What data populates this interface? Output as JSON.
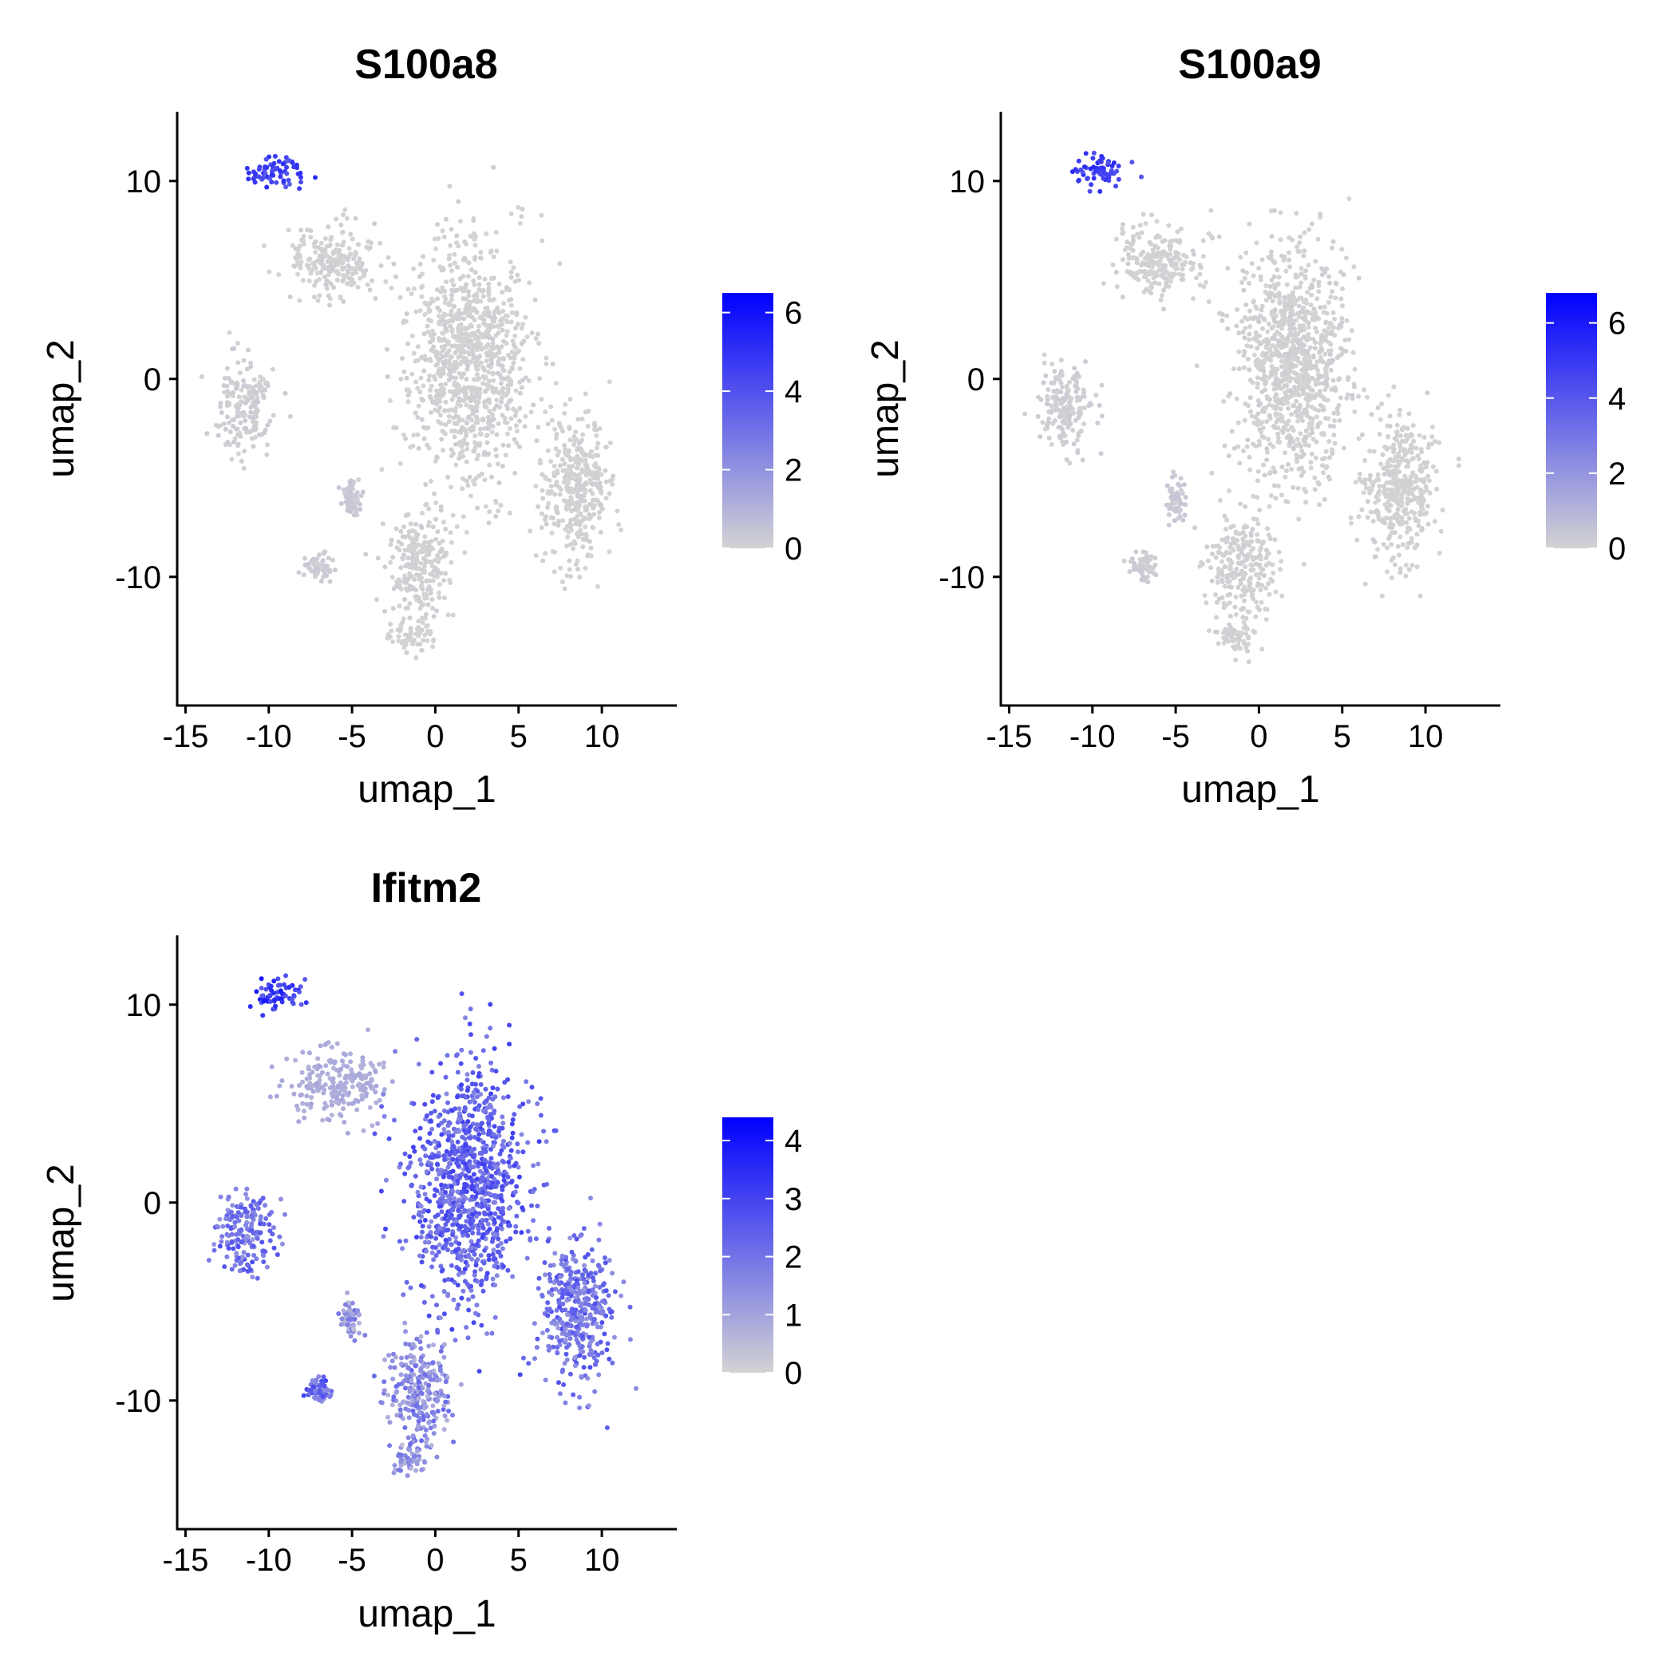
{
  "chart_data": [
    {
      "type": "scatter",
      "title": "S100a8",
      "xlabel": "umap_1",
      "ylabel": "umap_2",
      "xlim": [
        -15.5,
        14.5
      ],
      "ylim": [
        -16.5,
        13.5
      ],
      "xticks": [
        -15,
        -10,
        -5,
        0,
        5,
        10
      ],
      "xtick_labels": [
        "-15",
        "-10",
        "-5",
        "0",
        "5",
        "10"
      ],
      "yticks": [
        -10,
        0,
        10
      ],
      "ytick_labels": [
        "-10",
        "0",
        "10"
      ],
      "grid": false,
      "legend": {
        "position": "right",
        "min": 0,
        "max": 6.5,
        "ticks": [
          0,
          2,
          4,
          6
        ],
        "tick_labels": [
          "0",
          "2",
          "4",
          "6"
        ]
      },
      "color_low": "#d3d3d3",
      "color_high": "#0000ff",
      "series": [
        {
          "cluster": "top-left-small",
          "center": [
            -9.5,
            10.5
          ],
          "spread": [
            1.5,
            0.8
          ],
          "expression": 4.5
        },
        {
          "cluster": "upper-left-mid",
          "center": [
            -6.0,
            6.0
          ],
          "spread": [
            2.5,
            1.6
          ],
          "expression": 0.05
        },
        {
          "cluster": "left",
          "center": [
            -11.5,
            -1.5
          ],
          "spread": [
            1.6,
            2.0
          ],
          "expression": 0.15
        },
        {
          "cluster": "central-large",
          "center": [
            2.0,
            1.0
          ],
          "spread": [
            3.2,
            5.5
          ],
          "expression": 0.05
        },
        {
          "cluster": "right-elongated",
          "center": [
            8.5,
            -5.5
          ],
          "spread": [
            2.0,
            3.5
          ],
          "expression": 0.02
        },
        {
          "cluster": "bottom-center",
          "center": [
            -1.0,
            -9.5
          ],
          "spread": [
            1.8,
            2.5
          ],
          "expression": 0.05
        },
        {
          "cluster": "bottom-small",
          "center": [
            -1.5,
            -13.0
          ],
          "spread": [
            1.2,
            0.8
          ],
          "expression": 0.02
        },
        {
          "cluster": "small-left-lower",
          "center": [
            -5.0,
            -6.0
          ],
          "spread": [
            0.5,
            1.0
          ],
          "expression": 0.3
        },
        {
          "cluster": "small-left-bottom",
          "center": [
            -7.0,
            -9.5
          ],
          "spread": [
            0.7,
            0.6
          ],
          "expression": 0.2
        }
      ]
    },
    {
      "type": "scatter",
      "title": "S100a9",
      "xlabel": "umap_1",
      "ylabel": "umap_2",
      "xlim": [
        -15.5,
        14.5
      ],
      "ylim": [
        -16.5,
        13.5
      ],
      "xticks": [
        -15,
        -10,
        -5,
        0,
        5,
        10
      ],
      "xtick_labels": [
        "-15",
        "-10",
        "-5",
        "0",
        "5",
        "10"
      ],
      "yticks": [
        -10,
        0,
        10
      ],
      "ytick_labels": [
        "-10",
        "0",
        "10"
      ],
      "grid": false,
      "legend": {
        "position": "right",
        "min": 0,
        "max": 6.8,
        "ticks": [
          0,
          2,
          4,
          6
        ],
        "tick_labels": [
          "0",
          "2",
          "4",
          "6"
        ]
      },
      "color_low": "#d3d3d3",
      "color_high": "#0000ff",
      "series": [
        {
          "cluster": "top-left-small",
          "center": [
            -9.5,
            10.5
          ],
          "spread": [
            1.5,
            0.8
          ],
          "expression": 4.8
        },
        {
          "cluster": "upper-left-mid",
          "center": [
            -6.0,
            6.0
          ],
          "spread": [
            2.5,
            1.6
          ],
          "expression": 0.05
        },
        {
          "cluster": "left",
          "center": [
            -11.5,
            -1.5
          ],
          "spread": [
            1.6,
            2.0
          ],
          "expression": 0.15
        },
        {
          "cluster": "central-large",
          "center": [
            2.0,
            1.0
          ],
          "spread": [
            3.2,
            5.5
          ],
          "expression": 0.05
        },
        {
          "cluster": "right-elongated",
          "center": [
            8.5,
            -5.5
          ],
          "spread": [
            2.0,
            3.5
          ],
          "expression": 0.02
        },
        {
          "cluster": "bottom-center",
          "center": [
            -1.0,
            -9.5
          ],
          "spread": [
            1.8,
            2.5
          ],
          "expression": 0.05
        },
        {
          "cluster": "bottom-small",
          "center": [
            -1.5,
            -13.0
          ],
          "spread": [
            1.2,
            0.8
          ],
          "expression": 0.02
        },
        {
          "cluster": "small-left-lower",
          "center": [
            -5.0,
            -6.0
          ],
          "spread": [
            0.5,
            1.0
          ],
          "expression": 0.3
        },
        {
          "cluster": "small-left-bottom",
          "center": [
            -7.0,
            -9.5
          ],
          "spread": [
            0.7,
            0.6
          ],
          "expression": 0.2
        }
      ]
    },
    {
      "type": "scatter",
      "title": "Ifitm2",
      "xlabel": "umap_1",
      "ylabel": "umap_2",
      "xlim": [
        -15.5,
        14.5
      ],
      "ylim": [
        -16.5,
        13.5
      ],
      "xticks": [
        -15,
        -10,
        -5,
        0,
        5,
        10
      ],
      "xtick_labels": [
        "-15",
        "-10",
        "-5",
        "0",
        "5",
        "10"
      ],
      "yticks": [
        -10,
        0,
        10
      ],
      "ytick_labels": [
        "-10",
        "0",
        "10"
      ],
      "grid": false,
      "legend": {
        "position": "right",
        "min": 0,
        "max": 4.4,
        "ticks": [
          0,
          1,
          2,
          3,
          4
        ],
        "tick_labels": [
          "0",
          "1",
          "2",
          "3",
          "4"
        ]
      },
      "color_low": "#d3d3d3",
      "color_high": "#0000ff",
      "series": [
        {
          "cluster": "top-left-small",
          "center": [
            -9.5,
            10.5
          ],
          "spread": [
            1.5,
            0.8
          ],
          "expression": 3.2
        },
        {
          "cluster": "upper-left-mid",
          "center": [
            -6.0,
            6.0
          ],
          "spread": [
            2.5,
            1.6
          ],
          "expression": 0.8
        },
        {
          "cluster": "left",
          "center": [
            -11.5,
            -1.5
          ],
          "spread": [
            1.6,
            2.0
          ],
          "expression": 2.0
        },
        {
          "cluster": "central-large",
          "center": [
            2.0,
            1.0
          ],
          "spread": [
            3.2,
            5.5
          ],
          "expression": 2.3
        },
        {
          "cluster": "right-elongated",
          "center": [
            8.5,
            -5.5
          ],
          "spread": [
            2.0,
            3.5
          ],
          "expression": 2.0
        },
        {
          "cluster": "bottom-center",
          "center": [
            -1.0,
            -9.5
          ],
          "spread": [
            1.8,
            2.5
          ],
          "expression": 1.5
        },
        {
          "cluster": "bottom-small",
          "center": [
            -1.5,
            -13.0
          ],
          "spread": [
            1.2,
            0.8
          ],
          "expression": 1.2
        },
        {
          "cluster": "small-left-lower",
          "center": [
            -5.0,
            -6.0
          ],
          "spread": [
            0.5,
            1.0
          ],
          "expression": 1.2
        },
        {
          "cluster": "small-left-bottom",
          "center": [
            -7.0,
            -9.5
          ],
          "spread": [
            0.7,
            0.6
          ],
          "expression": 2.2
        }
      ]
    }
  ]
}
